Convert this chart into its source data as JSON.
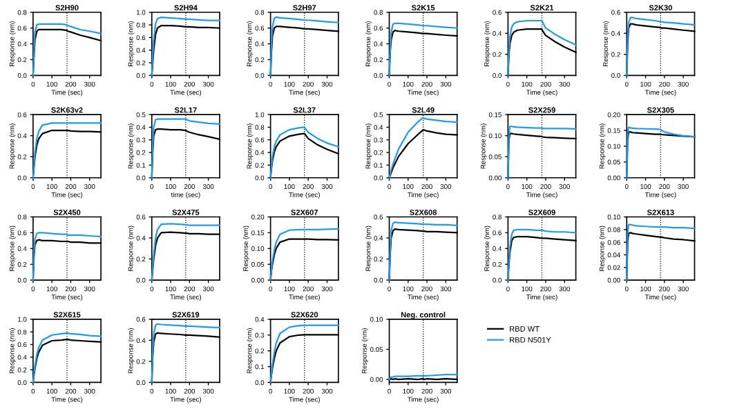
{
  "chart_data": [
    {
      "type": "line",
      "title": "S2H90",
      "xlabel": "Time (sec)",
      "ylabel": "Response (nm)",
      "x": [
        0,
        5,
        10,
        20,
        30,
        50,
        100,
        150,
        180,
        185,
        200,
        250,
        300,
        360
      ],
      "xlim": [
        0,
        360
      ],
      "xticks": [
        0,
        100,
        200,
        300
      ],
      "ylim": [
        0,
        0.8
      ],
      "yticks": [
        {
          "value": 0,
          "label": "0.0"
        },
        0.2,
        0.4,
        0.6,
        0.8
      ],
      "ref_lines": [
        {
          "axis": "x",
          "value": 180,
          "color": "#000000",
          "line_style": "dotted"
        }
      ],
      "series": [
        {
          "color": "#000000",
          "values": [
            0,
            0.25,
            0.45,
            0.56,
            0.58,
            0.58,
            0.58,
            0.58,
            0.57,
            0.56,
            0.55,
            0.51,
            0.48,
            0.44
          ]
        },
        {
          "color": "#1e9bf0",
          "values": [
            0,
            0.3,
            0.55,
            0.64,
            0.65,
            0.65,
            0.65,
            0.65,
            0.64,
            0.63,
            0.62,
            0.58,
            0.56,
            0.53
          ]
        }
      ]
    },
    {
      "type": "line",
      "title": "S2H94",
      "xlabel": "Time (sec)",
      "ylabel": "Response (nm)",
      "x": [
        0,
        5,
        10,
        20,
        30,
        50,
        100,
        150,
        180,
        185,
        200,
        250,
        300,
        360
      ],
      "xlim": [
        0,
        360
      ],
      "xticks": [
        0,
        100,
        200,
        300
      ],
      "ylim": [
        0,
        1.0
      ],
      "yticks": [
        {
          "value": 0,
          "label": "0.0"
        },
        0.2,
        0.4,
        0.6,
        0.8,
        {
          "value": 1,
          "label": "1.0"
        }
      ],
      "ref_lines": [
        {
          "axis": "x",
          "value": 180,
          "color": "#000000",
          "line_style": "dotted"
        }
      ],
      "series": [
        {
          "color": "#000000",
          "values": [
            0,
            0.2,
            0.4,
            0.65,
            0.75,
            0.79,
            0.79,
            0.78,
            0.77,
            0.77,
            0.77,
            0.76,
            0.76,
            0.75
          ]
        },
        {
          "color": "#1e9bf0",
          "values": [
            0,
            0.3,
            0.55,
            0.82,
            0.9,
            0.92,
            0.91,
            0.9,
            0.89,
            0.89,
            0.89,
            0.88,
            0.87,
            0.87
          ]
        }
      ]
    },
    {
      "type": "line",
      "title": "S2H97",
      "xlabel": "Time (sec)",
      "ylabel": "Response (nm)",
      "x": [
        0,
        5,
        10,
        20,
        30,
        50,
        100,
        150,
        180,
        185,
        200,
        250,
        300,
        360
      ],
      "xlim": [
        0,
        360
      ],
      "xticks": [
        0,
        100,
        200,
        300
      ],
      "ylim": [
        0,
        0.8
      ],
      "yticks": [
        {
          "value": 0,
          "label": "0.0"
        },
        0.2,
        0.4,
        0.6,
        0.8
      ],
      "ref_lines": [
        {
          "axis": "x",
          "value": 180,
          "color": "#000000",
          "line_style": "dotted"
        }
      ],
      "series": [
        {
          "color": "#000000",
          "values": [
            0,
            0.3,
            0.5,
            0.6,
            0.62,
            0.62,
            0.61,
            0.6,
            0.59,
            0.59,
            0.59,
            0.58,
            0.57,
            0.56
          ]
        },
        {
          "color": "#1e9bf0",
          "values": [
            0,
            0.4,
            0.62,
            0.72,
            0.74,
            0.73,
            0.72,
            0.71,
            0.7,
            0.7,
            0.7,
            0.69,
            0.68,
            0.67
          ]
        }
      ]
    },
    {
      "type": "line",
      "title": "S2K15",
      "xlabel": "Time (sec)",
      "ylabel": "Response (nm)",
      "x": [
        0,
        5,
        10,
        20,
        30,
        50,
        100,
        150,
        180,
        185,
        200,
        250,
        300,
        360
      ],
      "xlim": [
        0,
        360
      ],
      "xticks": [
        0,
        100,
        200,
        300
      ],
      "ylim": [
        0,
        0.8
      ],
      "yticks": [
        {
          "value": 0,
          "label": "0.0"
        },
        0.2,
        0.4,
        0.6,
        0.8
      ],
      "ref_lines": [
        {
          "axis": "x",
          "value": 180,
          "color": "#000000",
          "line_style": "dotted"
        }
      ],
      "series": [
        {
          "color": "#000000",
          "values": [
            0,
            0.3,
            0.45,
            0.55,
            0.57,
            0.56,
            0.55,
            0.54,
            0.53,
            0.53,
            0.53,
            0.52,
            0.51,
            0.5
          ]
        },
        {
          "color": "#1e9bf0",
          "values": [
            0,
            0.35,
            0.55,
            0.65,
            0.66,
            0.66,
            0.65,
            0.64,
            0.63,
            0.63,
            0.63,
            0.62,
            0.61,
            0.6
          ]
        }
      ]
    },
    {
      "type": "line",
      "title": "S2K21",
      "xlabel": "Time (sec)",
      "ylabel": "Response (nm)",
      "x": [
        0,
        5,
        10,
        20,
        30,
        50,
        100,
        150,
        180,
        185,
        200,
        250,
        300,
        360
      ],
      "xlim": [
        0,
        360
      ],
      "xticks": [
        0,
        100,
        200,
        300
      ],
      "ylim": [
        0,
        0.6
      ],
      "yticks": [
        {
          "value": 0,
          "label": "0.0"
        },
        0.2,
        0.4,
        0.6
      ],
      "ref_lines": [
        {
          "axis": "x",
          "value": 180,
          "color": "#000000",
          "line_style": "dotted"
        }
      ],
      "series": [
        {
          "color": "#000000",
          "values": [
            0,
            0.2,
            0.3,
            0.38,
            0.41,
            0.43,
            0.44,
            0.44,
            0.44,
            0.42,
            0.38,
            0.32,
            0.27,
            0.22
          ]
        },
        {
          "color": "#1e9bf0",
          "values": [
            0,
            0.25,
            0.37,
            0.46,
            0.49,
            0.51,
            0.52,
            0.52,
            0.52,
            0.5,
            0.45,
            0.39,
            0.34,
            0.29
          ]
        }
      ]
    },
    {
      "type": "line",
      "title": "S2K30",
      "xlabel": "Time (sec)",
      "ylabel": "Response (nm)",
      "x": [
        0,
        5,
        10,
        20,
        30,
        50,
        100,
        150,
        180,
        185,
        200,
        250,
        300,
        360
      ],
      "xlim": [
        0,
        360
      ],
      "xticks": [
        0,
        100,
        200,
        300
      ],
      "ylim": [
        0,
        0.6
      ],
      "yticks": [
        {
          "value": 0,
          "label": "0.0"
        },
        0.2,
        0.4,
        0.6
      ],
      "ref_lines": [
        {
          "axis": "x",
          "value": 180,
          "color": "#000000",
          "line_style": "dotted"
        }
      ],
      "series": [
        {
          "color": "#000000",
          "values": [
            0,
            0.3,
            0.45,
            0.49,
            0.49,
            0.48,
            0.47,
            0.46,
            0.455,
            0.45,
            0.45,
            0.44,
            0.43,
            0.42
          ]
        },
        {
          "color": "#1e9bf0",
          "values": [
            0,
            0.35,
            0.5,
            0.55,
            0.55,
            0.54,
            0.53,
            0.52,
            0.51,
            0.51,
            0.505,
            0.5,
            0.49,
            0.48
          ]
        }
      ]
    },
    {
      "type": "line",
      "title": "S2K63v2",
      "xlabel": "Time (sec)",
      "ylabel": "Response (nm)",
      "x": [
        0,
        5,
        10,
        20,
        30,
        50,
        100,
        150,
        180,
        185,
        200,
        250,
        300,
        360
      ],
      "xlim": [
        0,
        360
      ],
      "xticks": [
        0,
        100,
        200,
        300
      ],
      "ylim": [
        0,
        0.6
      ],
      "yticks": [
        {
          "value": 0,
          "label": "0.0"
        },
        0.2,
        0.4,
        0.6
      ],
      "ref_lines": [
        {
          "axis": "x",
          "value": 180,
          "color": "#000000",
          "line_style": "dotted"
        }
      ],
      "series": [
        {
          "color": "#000000",
          "values": [
            0,
            0.1,
            0.2,
            0.31,
            0.37,
            0.42,
            0.45,
            0.45,
            0.45,
            0.45,
            0.445,
            0.44,
            0.44,
            0.435
          ]
        },
        {
          "color": "#1e9bf0",
          "values": [
            0,
            0.12,
            0.24,
            0.37,
            0.44,
            0.5,
            0.52,
            0.52,
            0.52,
            0.52,
            0.52,
            0.52,
            0.52,
            0.52
          ]
        }
      ]
    },
    {
      "type": "line",
      "title": "S2L17",
      "xlabel": "time (sec)",
      "ylabel": "Response (nm)",
      "x": [
        0,
        5,
        10,
        20,
        30,
        50,
        100,
        150,
        180,
        185,
        200,
        250,
        300,
        360
      ],
      "xlim": [
        0,
        360
      ],
      "xticks": [
        0,
        100,
        200,
        300
      ],
      "ylim": [
        0,
        0.5
      ],
      "yticks": [
        {
          "value": 0,
          "label": "0.0"
        },
        0.1,
        0.2,
        0.3,
        0.4,
        0.5
      ],
      "ref_lines": [
        {
          "axis": "x",
          "value": 180,
          "color": "#000000",
          "line_style": "dotted"
        }
      ],
      "series": [
        {
          "color": "#000000",
          "values": [
            0,
            0.2,
            0.33,
            0.38,
            0.385,
            0.385,
            0.38,
            0.38,
            0.375,
            0.37,
            0.36,
            0.34,
            0.325,
            0.305
          ]
        },
        {
          "color": "#1e9bf0",
          "values": [
            0,
            0.25,
            0.4,
            0.46,
            0.465,
            0.465,
            0.465,
            0.465,
            0.465,
            0.46,
            0.45,
            0.44,
            0.43,
            0.425
          ]
        }
      ]
    },
    {
      "type": "line",
      "title": "S2L37",
      "xlabel": "Time (sec)",
      "ylabel": "Response (nm)",
      "x": [
        0,
        5,
        10,
        20,
        30,
        50,
        100,
        150,
        180,
        185,
        200,
        250,
        300,
        360
      ],
      "xlim": [
        0,
        360
      ],
      "xticks": [
        0,
        100,
        200,
        300
      ],
      "ylim": [
        0,
        1.0
      ],
      "yticks": [
        {
          "value": 0,
          "label": "0.0"
        },
        0.2,
        0.4,
        0.6,
        0.8,
        {
          "value": 1,
          "label": "1.0"
        }
      ],
      "ref_lines": [
        {
          "axis": "x",
          "value": 180,
          "color": "#000000",
          "line_style": "dotted"
        }
      ],
      "series": [
        {
          "color": "#000000",
          "values": [
            0,
            0.15,
            0.27,
            0.41,
            0.49,
            0.58,
            0.66,
            0.69,
            0.7,
            0.68,
            0.62,
            0.52,
            0.45,
            0.38
          ]
        },
        {
          "color": "#1e9bf0",
          "values": [
            0,
            0.18,
            0.33,
            0.49,
            0.58,
            0.68,
            0.76,
            0.79,
            0.8,
            0.78,
            0.72,
            0.62,
            0.55,
            0.49
          ]
        }
      ]
    },
    {
      "type": "line",
      "title": "S2L49",
      "xlabel": "Time (sec)",
      "ylabel": "Response (nm)",
      "x": [
        0,
        5,
        10,
        20,
        30,
        50,
        100,
        150,
        180,
        185,
        200,
        250,
        300,
        360
      ],
      "xlim": [
        0,
        360
      ],
      "xticks": [
        0,
        100,
        200,
        300
      ],
      "ylim": [
        0,
        0.5
      ],
      "yticks": [
        {
          "value": 0,
          "label": "0.0"
        },
        0.1,
        0.2,
        0.3,
        0.4,
        0.5
      ],
      "ref_lines": [
        {
          "axis": "x",
          "value": 180,
          "color": "#000000",
          "line_style": "dotted"
        }
      ],
      "series": [
        {
          "color": "#000000",
          "values": [
            0,
            0.02,
            0.04,
            0.08,
            0.11,
            0.17,
            0.27,
            0.34,
            0.38,
            0.378,
            0.37,
            0.355,
            0.345,
            0.34
          ]
        },
        {
          "color": "#1e9bf0",
          "values": [
            0,
            0.03,
            0.06,
            0.11,
            0.15,
            0.23,
            0.36,
            0.44,
            0.475,
            0.47,
            0.465,
            0.455,
            0.445,
            0.44
          ]
        }
      ]
    },
    {
      "type": "line",
      "title": "S2X259",
      "xlabel": "Time (sec)",
      "ylabel": "Response (nm)",
      "x": [
        0,
        5,
        10,
        20,
        30,
        50,
        100,
        150,
        180,
        185,
        200,
        250,
        300,
        360
      ],
      "xlim": [
        0,
        360
      ],
      "xticks": [
        0,
        100,
        200,
        300
      ],
      "ylim": [
        0,
        0.15
      ],
      "yticks": [
        {
          "value": 0,
          "label": "0.00"
        },
        0.05,
        {
          "value": 0.1,
          "label": "0.10"
        },
        0.15
      ],
      "ref_lines": [
        {
          "axis": "x",
          "value": 180,
          "color": "#000000",
          "line_style": "dotted"
        }
      ],
      "series": [
        {
          "color": "#000000",
          "values": [
            0,
            0.09,
            0.105,
            0.105,
            0.104,
            0.103,
            0.101,
            0.099,
            0.098,
            0.097,
            0.096,
            0.095,
            0.094,
            0.093
          ]
        },
        {
          "color": "#1e9bf0",
          "values": [
            0,
            0.1,
            0.122,
            0.122,
            0.121,
            0.12,
            0.119,
            0.118,
            0.118,
            0.117,
            0.117,
            0.117,
            0.117,
            0.116
          ]
        }
      ]
    },
    {
      "type": "line",
      "title": "S2X305",
      "xlabel": "Time (sec)",
      "ylabel": "Response (nm)",
      "x": [
        0,
        5,
        10,
        20,
        30,
        50,
        100,
        150,
        180,
        185,
        200,
        250,
        300,
        360
      ],
      "xlim": [
        0,
        360
      ],
      "xticks": [
        0,
        100,
        200,
        300
      ],
      "ylim": [
        0,
        0.2
      ],
      "yticks": [
        {
          "value": 0,
          "label": "0.00"
        },
        0.05,
        {
          "value": 0.1,
          "label": "0.10"
        },
        0.15,
        {
          "value": 0.2,
          "label": "0.20"
        }
      ],
      "ref_lines": [
        {
          "axis": "x",
          "value": 180,
          "color": "#000000",
          "line_style": "dotted"
        }
      ],
      "series": [
        {
          "color": "#000000",
          "values": [
            0,
            0.12,
            0.145,
            0.145,
            0.143,
            0.142,
            0.14,
            0.138,
            0.138,
            0.137,
            0.136,
            0.134,
            0.132,
            0.13
          ]
        },
        {
          "color": "#1e9bf0",
          "values": [
            0,
            0.14,
            0.16,
            0.158,
            0.157,
            0.156,
            0.155,
            0.154,
            0.153,
            0.15,
            0.145,
            0.138,
            0.133,
            0.13
          ]
        }
      ]
    },
    {
      "type": "line",
      "title": "S2X450",
      "xlabel": "Time (sec)",
      "ylabel": "Response (nm)",
      "x": [
        0,
        5,
        10,
        20,
        30,
        50,
        100,
        150,
        180,
        185,
        200,
        250,
        300,
        360
      ],
      "xlim": [
        0,
        360
      ],
      "xticks": [
        0,
        100,
        200,
        300
      ],
      "ylim": [
        0,
        0.8
      ],
      "yticks": [
        {
          "value": 0,
          "label": "0.0"
        },
        0.2,
        0.4,
        0.6,
        0.8
      ],
      "ref_lines": [
        {
          "axis": "x",
          "value": 180,
          "color": "#000000",
          "line_style": "dotted"
        }
      ],
      "series": [
        {
          "color": "#000000",
          "values": [
            0,
            0.3,
            0.45,
            0.5,
            0.51,
            0.5,
            0.5,
            0.49,
            0.49,
            0.49,
            0.48,
            0.48,
            0.47,
            0.47
          ]
        },
        {
          "color": "#1e9bf0",
          "values": [
            0,
            0.35,
            0.52,
            0.59,
            0.6,
            0.6,
            0.59,
            0.58,
            0.58,
            0.57,
            0.57,
            0.57,
            0.56,
            0.55
          ]
        }
      ]
    },
    {
      "type": "line",
      "title": "S2X475",
      "xlabel": "Time (sec)",
      "ylabel": "Response (nm)",
      "x": [
        0,
        5,
        10,
        20,
        30,
        50,
        100,
        150,
        180,
        185,
        200,
        250,
        300,
        360
      ],
      "xlim": [
        0,
        360
      ],
      "xticks": [
        0,
        100,
        200,
        300
      ],
      "ylim": [
        0,
        0.6
      ],
      "yticks": [
        {
          "value": 0,
          "label": "0.0"
        },
        0.2,
        0.4,
        0.6
      ],
      "ref_lines": [
        {
          "axis": "x",
          "value": 180,
          "color": "#000000",
          "line_style": "dotted"
        }
      ],
      "series": [
        {
          "color": "#000000",
          "values": [
            0,
            0.1,
            0.2,
            0.33,
            0.4,
            0.45,
            0.455,
            0.45,
            0.445,
            0.445,
            0.44,
            0.44,
            0.435,
            0.435
          ]
        },
        {
          "color": "#1e9bf0",
          "values": [
            0,
            0.12,
            0.24,
            0.4,
            0.48,
            0.53,
            0.535,
            0.53,
            0.525,
            0.525,
            0.52,
            0.52,
            0.52,
            0.52
          ]
        }
      ]
    },
    {
      "type": "line",
      "title": "S2X607",
      "xlabel": "Time (sec)",
      "ylabel": "Response (nm)",
      "x": [
        0,
        5,
        10,
        20,
        30,
        50,
        100,
        150,
        180,
        185,
        200,
        250,
        300,
        360
      ],
      "xlim": [
        0,
        360
      ],
      "xticks": [
        0,
        100,
        200,
        300
      ],
      "ylim": [
        0,
        0.2
      ],
      "yticks": [
        {
          "value": 0,
          "label": "0.00"
        },
        0.05,
        {
          "value": 0.1,
          "label": "0.10"
        },
        0.15,
        {
          "value": 0.2,
          "label": "0.20"
        }
      ],
      "ref_lines": [
        {
          "axis": "x",
          "value": 180,
          "color": "#000000",
          "line_style": "dotted"
        }
      ],
      "series": [
        {
          "color": "#000000",
          "values": [
            0,
            0.03,
            0.05,
            0.08,
            0.1,
            0.12,
            0.13,
            0.13,
            0.13,
            0.13,
            0.13,
            0.128,
            0.128,
            0.127
          ]
        },
        {
          "color": "#1e9bf0",
          "values": [
            0,
            0.035,
            0.06,
            0.095,
            0.12,
            0.145,
            0.158,
            0.16,
            0.16,
            0.16,
            0.16,
            0.16,
            0.161,
            0.162
          ]
        }
      ]
    },
    {
      "type": "line",
      "title": "S2X608",
      "xlabel": "Time (sec)",
      "ylabel": "Response (nm)",
      "x": [
        0,
        5,
        10,
        20,
        30,
        50,
        100,
        150,
        180,
        185,
        200,
        250,
        300,
        360
      ],
      "xlim": [
        0,
        360
      ],
      "xticks": [
        0,
        100,
        200,
        300
      ],
      "ylim": [
        0,
        0.6
      ],
      "yticks": [
        {
          "value": 0,
          "label": "0.0"
        },
        0.2,
        0.4,
        0.6
      ],
      "ref_lines": [
        {
          "axis": "x",
          "value": 180,
          "color": "#000000",
          "line_style": "dotted"
        }
      ],
      "series": [
        {
          "color": "#000000",
          "values": [
            0,
            0.25,
            0.4,
            0.47,
            0.485,
            0.48,
            0.475,
            0.47,
            0.465,
            0.465,
            0.46,
            0.46,
            0.455,
            0.45
          ]
        },
        {
          "color": "#1e9bf0",
          "values": [
            0,
            0.3,
            0.47,
            0.54,
            0.55,
            0.545,
            0.54,
            0.535,
            0.53,
            0.53,
            0.53,
            0.525,
            0.525,
            0.52
          ]
        }
      ]
    },
    {
      "type": "line",
      "title": "S2X609",
      "xlabel": "Time (sec)",
      "ylabel": "Response (nm)",
      "x": [
        0,
        5,
        10,
        20,
        30,
        50,
        100,
        150,
        180,
        185,
        200,
        250,
        300,
        360
      ],
      "xlim": [
        0,
        360
      ],
      "xticks": [
        0,
        100,
        200,
        300
      ],
      "ylim": [
        0,
        0.8
      ],
      "yticks": [
        {
          "value": 0,
          "label": "0.0"
        },
        0.2,
        0.4,
        0.6,
        0.8
      ],
      "ref_lines": [
        {
          "axis": "x",
          "value": 180,
          "color": "#000000",
          "line_style": "dotted"
        }
      ],
      "series": [
        {
          "color": "#000000",
          "values": [
            0,
            0.2,
            0.35,
            0.5,
            0.54,
            0.55,
            0.55,
            0.54,
            0.53,
            0.53,
            0.53,
            0.52,
            0.51,
            0.5
          ]
        },
        {
          "color": "#1e9bf0",
          "values": [
            0,
            0.25,
            0.42,
            0.58,
            0.63,
            0.64,
            0.64,
            0.63,
            0.63,
            0.63,
            0.62,
            0.61,
            0.61,
            0.6
          ]
        }
      ]
    },
    {
      "type": "line",
      "title": "S2X613",
      "xlabel": "Time (sec)",
      "ylabel": "Response (nm)",
      "x": [
        0,
        5,
        10,
        20,
        30,
        50,
        100,
        150,
        180,
        185,
        200,
        250,
        300,
        360
      ],
      "xlim": [
        0,
        360
      ],
      "xticks": [
        0,
        100,
        200,
        300
      ],
      "ylim": [
        0,
        0.1
      ],
      "yticks": [
        {
          "value": 0,
          "label": "0.00"
        },
        0.02,
        0.04,
        0.06,
        0.08,
        {
          "value": 0.1,
          "label": "0.10"
        }
      ],
      "ref_lines": [
        {
          "axis": "x",
          "value": 180,
          "color": "#000000",
          "line_style": "dotted"
        }
      ],
      "series": [
        {
          "color": "#000000",
          "values": [
            0,
            0.06,
            0.074,
            0.075,
            0.074,
            0.073,
            0.071,
            0.069,
            0.068,
            0.068,
            0.067,
            0.065,
            0.064,
            0.062
          ]
        },
        {
          "color": "#1e9bf0",
          "values": [
            0,
            0.075,
            0.088,
            0.088,
            0.087,
            0.086,
            0.085,
            0.084,
            0.084,
            0.084,
            0.084,
            0.083,
            0.083,
            0.082
          ]
        }
      ]
    },
    {
      "type": "line",
      "title": "S2X615",
      "xlabel": "Time (sec)",
      "ylabel": "Response (nm)",
      "x": [
        0,
        5,
        10,
        20,
        30,
        50,
        100,
        150,
        180,
        185,
        200,
        250,
        300,
        360
      ],
      "xlim": [
        0,
        360
      ],
      "xticks": [
        0,
        100,
        200,
        300
      ],
      "ylim": [
        0,
        1.0
      ],
      "yticks": [
        {
          "value": 0,
          "label": "0.0"
        },
        0.2,
        0.4,
        0.6,
        0.8,
        {
          "value": 1,
          "label": "1.0"
        }
      ],
      "ref_lines": [
        {
          "axis": "x",
          "value": 180,
          "color": "#000000",
          "line_style": "dotted"
        }
      ],
      "series": [
        {
          "color": "#000000",
          "values": [
            0,
            0.12,
            0.22,
            0.38,
            0.48,
            0.59,
            0.66,
            0.67,
            0.68,
            0.68,
            0.67,
            0.66,
            0.65,
            0.64
          ]
        },
        {
          "color": "#1e9bf0",
          "values": [
            0,
            0.14,
            0.26,
            0.44,
            0.55,
            0.67,
            0.75,
            0.77,
            0.78,
            0.78,
            0.77,
            0.76,
            0.74,
            0.73
          ]
        }
      ]
    },
    {
      "type": "line",
      "title": "S2X619",
      "xlabel": "Time (sec)",
      "ylabel": "Response (nm)",
      "x": [
        0,
        5,
        10,
        20,
        30,
        50,
        100,
        150,
        180,
        185,
        200,
        250,
        300,
        360
      ],
      "xlim": [
        0,
        360
      ],
      "xticks": [
        0,
        100,
        200,
        300
      ],
      "ylim": [
        0,
        0.6
      ],
      "yticks": [
        {
          "value": 0,
          "label": "0.0"
        },
        0.2,
        0.4,
        0.6
      ],
      "ref_lines": [
        {
          "axis": "x",
          "value": 180,
          "color": "#000000",
          "line_style": "dotted"
        }
      ],
      "series": [
        {
          "color": "#000000",
          "values": [
            0,
            0.25,
            0.38,
            0.46,
            0.47,
            0.465,
            0.46,
            0.455,
            0.45,
            0.45,
            0.45,
            0.445,
            0.44,
            0.43
          ]
        },
        {
          "color": "#1e9bf0",
          "values": [
            0,
            0.3,
            0.46,
            0.545,
            0.555,
            0.55,
            0.545,
            0.54,
            0.535,
            0.535,
            0.535,
            0.53,
            0.525,
            0.52
          ]
        }
      ]
    },
    {
      "type": "line",
      "title": "S2X620",
      "xlabel": "Time (sec)",
      "ylabel": "Response (nm)",
      "x": [
        0,
        5,
        10,
        20,
        30,
        50,
        100,
        150,
        180,
        185,
        200,
        250,
        300,
        360
      ],
      "xlim": [
        0,
        360
      ],
      "xticks": [
        0,
        100,
        200,
        300
      ],
      "ylim": [
        0,
        0.4
      ],
      "yticks": [
        {
          "value": 0,
          "label": "0.0"
        },
        0.1,
        0.2,
        0.3,
        0.4
      ],
      "ref_lines": [
        {
          "axis": "x",
          "value": 180,
          "color": "#000000",
          "line_style": "dotted"
        }
      ],
      "series": [
        {
          "color": "#000000",
          "values": [
            0,
            0.05,
            0.09,
            0.15,
            0.2,
            0.25,
            0.29,
            0.3,
            0.302,
            0.302,
            0.302,
            0.302,
            0.302,
            0.302
          ]
        },
        {
          "color": "#1e9bf0",
          "values": [
            0,
            0.06,
            0.11,
            0.19,
            0.25,
            0.31,
            0.35,
            0.36,
            0.362,
            0.362,
            0.362,
            0.362,
            0.362,
            0.362
          ]
        }
      ]
    },
    {
      "type": "line",
      "title": "Neg. control",
      "xlabel": "Time (sec)",
      "ylabel": "Response (nm)",
      "x": [
        0,
        5,
        10,
        20,
        30,
        50,
        100,
        150,
        180,
        185,
        200,
        250,
        300,
        360
      ],
      "xlim": [
        0,
        360
      ],
      "xticks": [
        0,
        100,
        200,
        300
      ],
      "ylim": [
        -0.005,
        0.1
      ],
      "yticks": [
        {
          "value": 0,
          "label": "0.00"
        },
        0.05,
        {
          "value": 0.1,
          "label": "0.10"
        }
      ],
      "ref_lines": [
        {
          "axis": "x",
          "value": 180,
          "color": "#000000",
          "line_style": "dotted"
        }
      ],
      "legend": "right",
      "series": [
        {
          "name": "RBD WT",
          "color": "#000000",
          "values": [
            0,
            0,
            0.001,
            0,
            0.001,
            0,
            0.001,
            0,
            0.001,
            0,
            0.001,
            0,
            0.001,
            0
          ]
        },
        {
          "name": "RBD N501Y",
          "color": "#1e9bf0",
          "values": [
            0,
            0.003,
            0.004,
            0.004,
            0.005,
            0.005,
            0.005,
            0.006,
            0.006,
            0.006,
            0.006,
            0.007,
            0.008,
            0.008
          ]
        }
      ]
    }
  ]
}
